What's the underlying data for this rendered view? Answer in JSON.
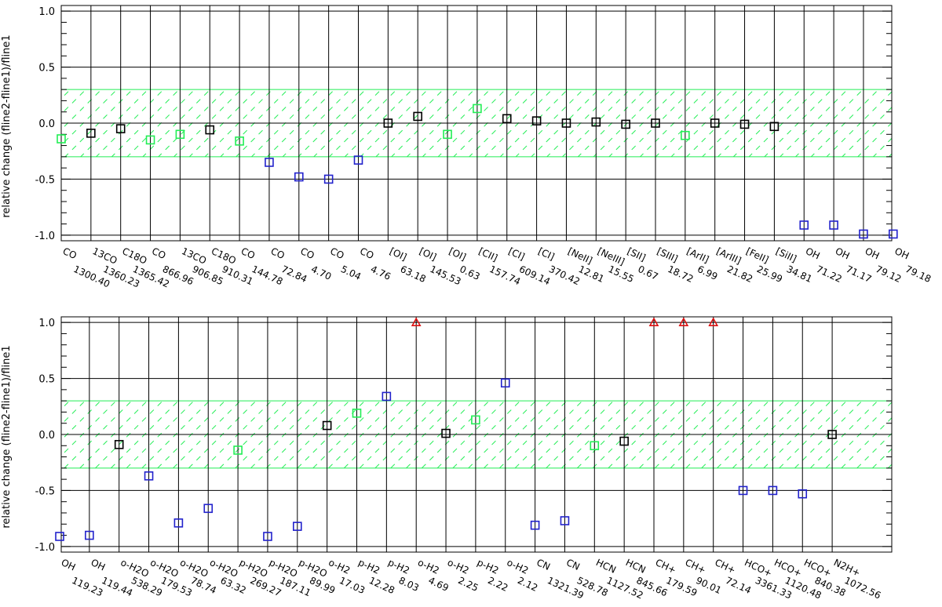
{
  "colors": {
    "black": "#000000",
    "green": "#22ee55",
    "blue": "#2222cc",
    "red": "#dd1111",
    "band": "#22ee55"
  },
  "chart_data": [
    {
      "type": "scatter",
      "ylabel": "relative change (fline2-fline1)/fline1",
      "ylim": [
        -1.05,
        1.05
      ],
      "yticks": [
        "1.0",
        "0.5",
        "0.0",
        "-0.5",
        "-1.0"
      ],
      "band": [
        -0.3,
        0.3
      ],
      "grid": "vertical lines at each category",
      "categories": [
        "CO 1300.40",
        "13CO 1360.23",
        "C18O 1365.42",
        "CO 866.96",
        "13CO 906.85",
        "C18O 910.31",
        "CO 144.78",
        "CO 72.84",
        "CO 4.70",
        "CO 5.04",
        "CO 4.76",
        "[OI] 63.18",
        "[OI] 145.53",
        "[OI] 0.63",
        "[CII] 157.74",
        "[CI] 609.14",
        "[CI] 370.42",
        "[NeII] 12.81",
        "[NeIII] 15.55",
        "[SII] 0.67",
        "[SIII] 18.72",
        "[ArII] 6.99",
        "[ArIII] 21.82",
        "[FeII] 25.99",
        "[SiII] 34.81",
        "OH 71.22",
        "OH 71.17",
        "OH 79.12",
        "OH 79.18"
      ],
      "points": [
        {
          "i": 0,
          "y": -0.14,
          "color": "green",
          "marker": "square"
        },
        {
          "i": 1,
          "y": -0.09,
          "color": "black",
          "marker": "square"
        },
        {
          "i": 2,
          "y": -0.05,
          "color": "black",
          "marker": "square"
        },
        {
          "i": 3,
          "y": -0.15,
          "color": "green",
          "marker": "square"
        },
        {
          "i": 4,
          "y": -0.1,
          "color": "green",
          "marker": "square"
        },
        {
          "i": 5,
          "y": -0.06,
          "color": "black",
          "marker": "square"
        },
        {
          "i": 6,
          "y": -0.16,
          "color": "green",
          "marker": "square"
        },
        {
          "i": 7,
          "y": -0.35,
          "color": "blue",
          "marker": "square"
        },
        {
          "i": 8,
          "y": -0.48,
          "color": "blue",
          "marker": "square"
        },
        {
          "i": 9,
          "y": -0.5,
          "color": "blue",
          "marker": "square"
        },
        {
          "i": 10,
          "y": -0.33,
          "color": "blue",
          "marker": "square"
        },
        {
          "i": 11,
          "y": 0.0,
          "color": "black",
          "marker": "square"
        },
        {
          "i": 12,
          "y": 0.06,
          "color": "black",
          "marker": "square"
        },
        {
          "i": 13,
          "y": -0.1,
          "color": "green",
          "marker": "square"
        },
        {
          "i": 14,
          "y": 0.13,
          "color": "green",
          "marker": "square"
        },
        {
          "i": 15,
          "y": 0.04,
          "color": "black",
          "marker": "square"
        },
        {
          "i": 16,
          "y": 0.02,
          "color": "black",
          "marker": "square"
        },
        {
          "i": 17,
          "y": 0.0,
          "color": "black",
          "marker": "square"
        },
        {
          "i": 18,
          "y": 0.01,
          "color": "black",
          "marker": "square"
        },
        {
          "i": 19,
          "y": -0.01,
          "color": "black",
          "marker": "square"
        },
        {
          "i": 20,
          "y": 0.0,
          "color": "black",
          "marker": "square"
        },
        {
          "i": 21,
          "y": -0.11,
          "color": "green",
          "marker": "square"
        },
        {
          "i": 22,
          "y": 0.0,
          "color": "black",
          "marker": "square"
        },
        {
          "i": 23,
          "y": -0.01,
          "color": "black",
          "marker": "square"
        },
        {
          "i": 24,
          "y": -0.03,
          "color": "black",
          "marker": "square"
        },
        {
          "i": 25,
          "y": -0.91,
          "color": "blue",
          "marker": "square"
        },
        {
          "i": 26,
          "y": -0.91,
          "color": "blue",
          "marker": "square"
        },
        {
          "i": 27,
          "y": -0.99,
          "color": "blue",
          "marker": "square"
        },
        {
          "i": 28,
          "y": -0.99,
          "color": "blue",
          "marker": "square"
        }
      ]
    },
    {
      "type": "scatter",
      "ylabel": "relative change (fline2-fline1)/fline1",
      "ylim": [
        -1.05,
        1.05
      ],
      "yticks": [
        "1.0",
        "0.5",
        "0.0",
        "-0.5",
        "-1.0"
      ],
      "band": [
        -0.3,
        0.3
      ],
      "grid": "vertical lines at each category",
      "categories": [
        "OH 119.23",
        "OH 119.44",
        "o-H2O 538.29",
        "o-H2O 179.53",
        "o-H2O 78.74",
        "o-H2O 63.32",
        "p-H2O 269.27",
        "p-H2O 187.11",
        "p-H2O 89.99",
        "o-H2 17.03",
        "p-H2 12.28",
        "p-H2 8.03",
        "o-H2 4.69",
        "o-H2 2.25",
        "p-H2 2.22",
        "o-H2 2.12",
        "CN 1321.39",
        "CN 528.78",
        "HCN 1127.52",
        "HCN 845.66",
        "CH+ 179.59",
        "CH+ 90.01",
        "CH+ 72.14",
        "HCO+ 3361.33",
        "HCO+ 1120.48",
        "HCO+ 840.38",
        "N2H+ 1072.56"
      ],
      "points": [
        {
          "i": 0,
          "y": -0.91,
          "color": "blue",
          "marker": "square"
        },
        {
          "i": 1,
          "y": -0.9,
          "color": "blue",
          "marker": "square"
        },
        {
          "i": 2,
          "y": -0.09,
          "color": "black",
          "marker": "square"
        },
        {
          "i": 3,
          "y": -0.37,
          "color": "blue",
          "marker": "square"
        },
        {
          "i": 4,
          "y": -0.79,
          "color": "blue",
          "marker": "square"
        },
        {
          "i": 5,
          "y": -0.66,
          "color": "blue",
          "marker": "square"
        },
        {
          "i": 6,
          "y": -0.14,
          "color": "green",
          "marker": "square"
        },
        {
          "i": 7,
          "y": -0.91,
          "color": "blue",
          "marker": "square"
        },
        {
          "i": 8,
          "y": -0.82,
          "color": "blue",
          "marker": "square"
        },
        {
          "i": 9,
          "y": 0.08,
          "color": "black",
          "marker": "square"
        },
        {
          "i": 10,
          "y": 0.19,
          "color": "green",
          "marker": "square"
        },
        {
          "i": 11,
          "y": 0.34,
          "color": "blue",
          "marker": "square"
        },
        {
          "i": 12,
          "y": 1.0,
          "color": "red",
          "marker": "triangle"
        },
        {
          "i": 13,
          "y": 0.01,
          "color": "black",
          "marker": "square"
        },
        {
          "i": 14,
          "y": 0.13,
          "color": "green",
          "marker": "square"
        },
        {
          "i": 15,
          "y": 0.46,
          "color": "blue",
          "marker": "square"
        },
        {
          "i": 16,
          "y": -0.81,
          "color": "blue",
          "marker": "square"
        },
        {
          "i": 17,
          "y": -0.77,
          "color": "blue",
          "marker": "square"
        },
        {
          "i": 18,
          "y": -0.1,
          "color": "green",
          "marker": "square"
        },
        {
          "i": 19,
          "y": -0.06,
          "color": "black",
          "marker": "square"
        },
        {
          "i": 20,
          "y": 1.0,
          "color": "red",
          "marker": "triangle"
        },
        {
          "i": 21,
          "y": 1.0,
          "color": "red",
          "marker": "triangle"
        },
        {
          "i": 22,
          "y": 1.0,
          "color": "red",
          "marker": "triangle"
        },
        {
          "i": 23,
          "y": -0.5,
          "color": "blue",
          "marker": "square"
        },
        {
          "i": 24,
          "y": -0.5,
          "color": "blue",
          "marker": "square"
        },
        {
          "i": 25,
          "y": -0.53,
          "color": "blue",
          "marker": "square"
        },
        {
          "i": 26,
          "y": 0.0,
          "color": "black",
          "marker": "square"
        }
      ]
    }
  ]
}
